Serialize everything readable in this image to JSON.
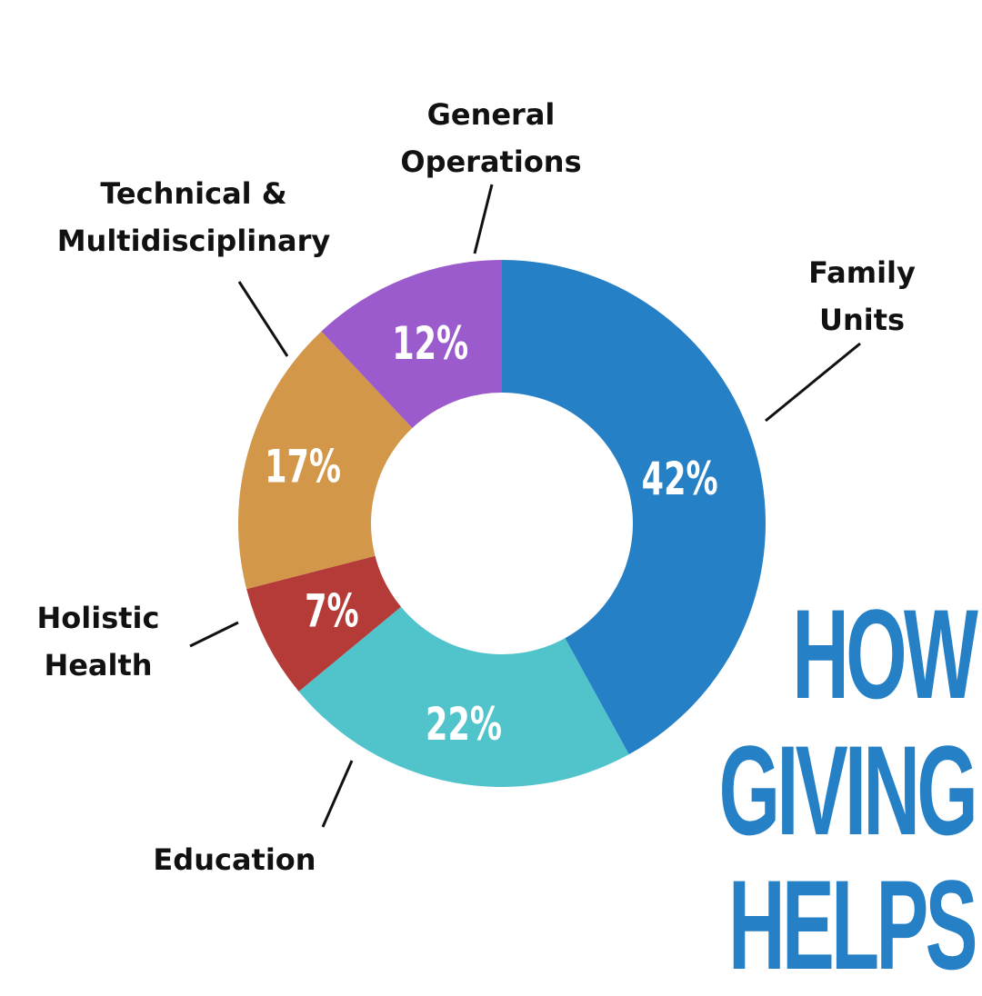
{
  "chart_data": {
    "type": "pie",
    "donut": true,
    "start_angle_deg": 0,
    "direction": "clockwise",
    "slices": [
      {
        "label_lines": [
          "Family",
          "Units"
        ],
        "value": 42,
        "value_label": "42%",
        "color": "#2680c5"
      },
      {
        "label_lines": [
          "Education"
        ],
        "value": 22,
        "value_label": "22%",
        "color": "#51c3cb"
      },
      {
        "label_lines": [
          "Holistic",
          "Health"
        ],
        "value": 7,
        "value_label": "7%",
        "color": "#b53b38"
      },
      {
        "label_lines": [
          "Technical &",
          "Multidisciplinary"
        ],
        "value": 17,
        "value_label": "17%",
        "color": "#d29748"
      },
      {
        "label_lines": [
          "General",
          "Operations"
        ],
        "value": 12,
        "value_label": "12%",
        "color": "#9b5bcc"
      }
    ]
  },
  "headline": {
    "lines": [
      "HOW",
      "GIVING",
      "HELPS"
    ],
    "color": "#2680c5"
  }
}
